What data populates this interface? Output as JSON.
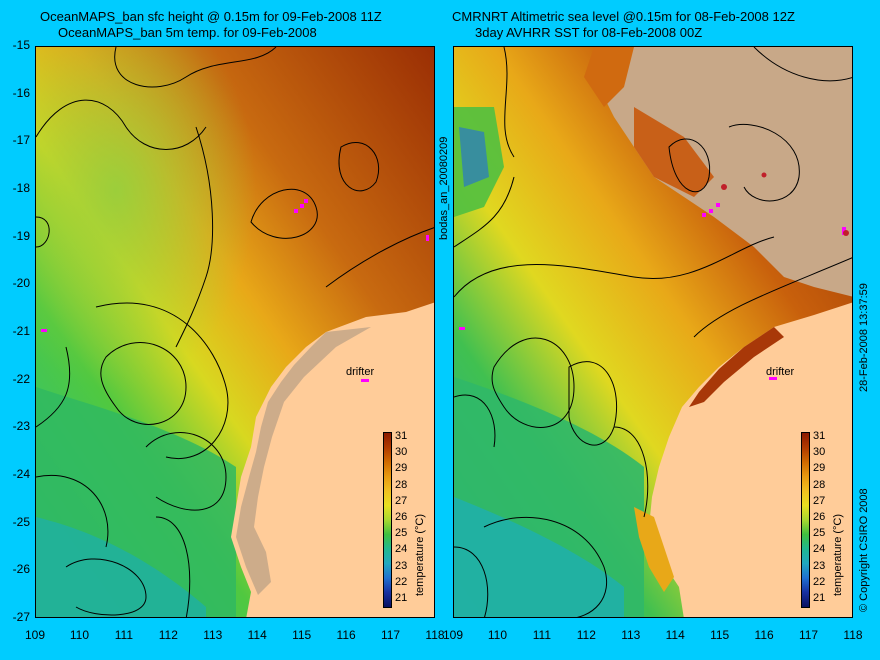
{
  "left_panel": {
    "title_line1": "OceanMAPS_ban sfc height @ 0.15m for 09-Feb-2008 11Z",
    "title_line2": "OceanMAPS_ban 5m temp. for 09-Feb-2008",
    "drifter_label": "drifter"
  },
  "right_panel": {
    "title_line1": "CMRNRT Altimetric sea level  @0.15m  for 08-Feb-2008 12Z",
    "title_line2": "3day AVHRR SST for 08-Feb-2008 00Z",
    "drifter_label": "drifter"
  },
  "axes": {
    "x_ticks": [
      "109",
      "110",
      "111",
      "112",
      "113",
      "114",
      "115",
      "116",
      "117",
      "118"
    ],
    "y_ticks": [
      "-15",
      "-16",
      "-17",
      "-18",
      "-19",
      "-20",
      "-21",
      "-22",
      "-23",
      "-24",
      "-25",
      "-26",
      "-27"
    ]
  },
  "colorbar": {
    "title": "temperature (°C)",
    "labels": [
      "31",
      "30",
      "29",
      "28",
      "27",
      "26",
      "25",
      "24",
      "23",
      "22",
      "21"
    ],
    "colors": [
      "#8b1a00",
      "#b03a00",
      "#d06a00",
      "#e89a10",
      "#f0c020",
      "#e8e020",
      "#a8d830",
      "#40c040",
      "#20b890",
      "#20a8c0",
      "#2070d0",
      "#1830a0",
      "#0a1060"
    ]
  },
  "side_labels": {
    "analysis_id": "bodas_an_20080209",
    "timestamp": "28-Feb-2008 13:37:59",
    "copyright": "© Copyright CSIRO 2008"
  }
}
